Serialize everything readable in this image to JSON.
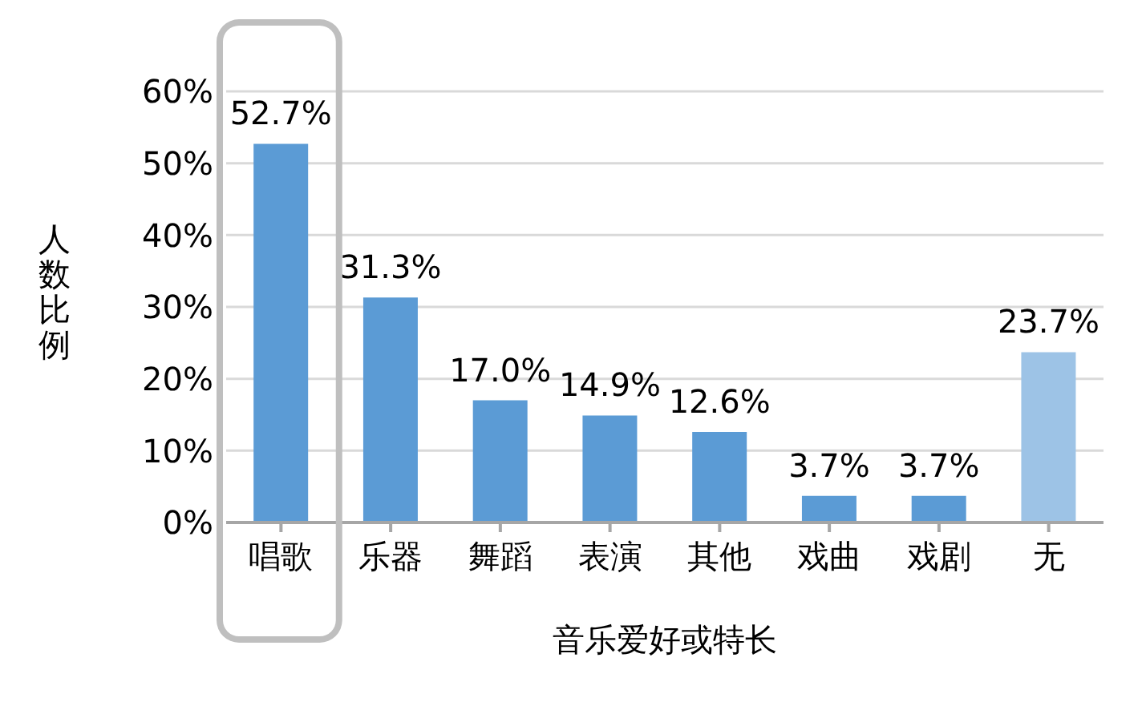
{
  "chart_data": {
    "type": "bar",
    "xlabel": "音乐爱好或特长",
    "ylabel": "人数比例",
    "categories": [
      "唱歌",
      "乐器",
      "舞蹈",
      "表演",
      "其他",
      "戏曲",
      "戏剧",
      "无"
    ],
    "values": [
      52.7,
      31.3,
      17.0,
      14.9,
      12.6,
      3.7,
      3.7,
      23.7
    ],
    "value_labels": [
      "52.7%",
      "31.3%",
      "17.0%",
      "14.9%",
      "12.6%",
      "3.7%",
      "3.7%",
      "23.7%"
    ],
    "colors": [
      "#5b9bd5",
      "#5b9bd5",
      "#5b9bd5",
      "#5b9bd5",
      "#5b9bd5",
      "#5b9bd5",
      "#5b9bd5",
      "#9dc3e6"
    ],
    "ylim": [
      0,
      60
    ],
    "yticks": [
      {
        "value": 0,
        "label": "0%"
      },
      {
        "value": 10,
        "label": "10%"
      },
      {
        "value": 20,
        "label": "20%"
      },
      {
        "value": 30,
        "label": "30%"
      },
      {
        "value": 40,
        "label": "40%"
      },
      {
        "value": 50,
        "label": "50%"
      },
      {
        "value": 60,
        "label": "60%"
      }
    ],
    "grid": "y",
    "legend": false
  }
}
